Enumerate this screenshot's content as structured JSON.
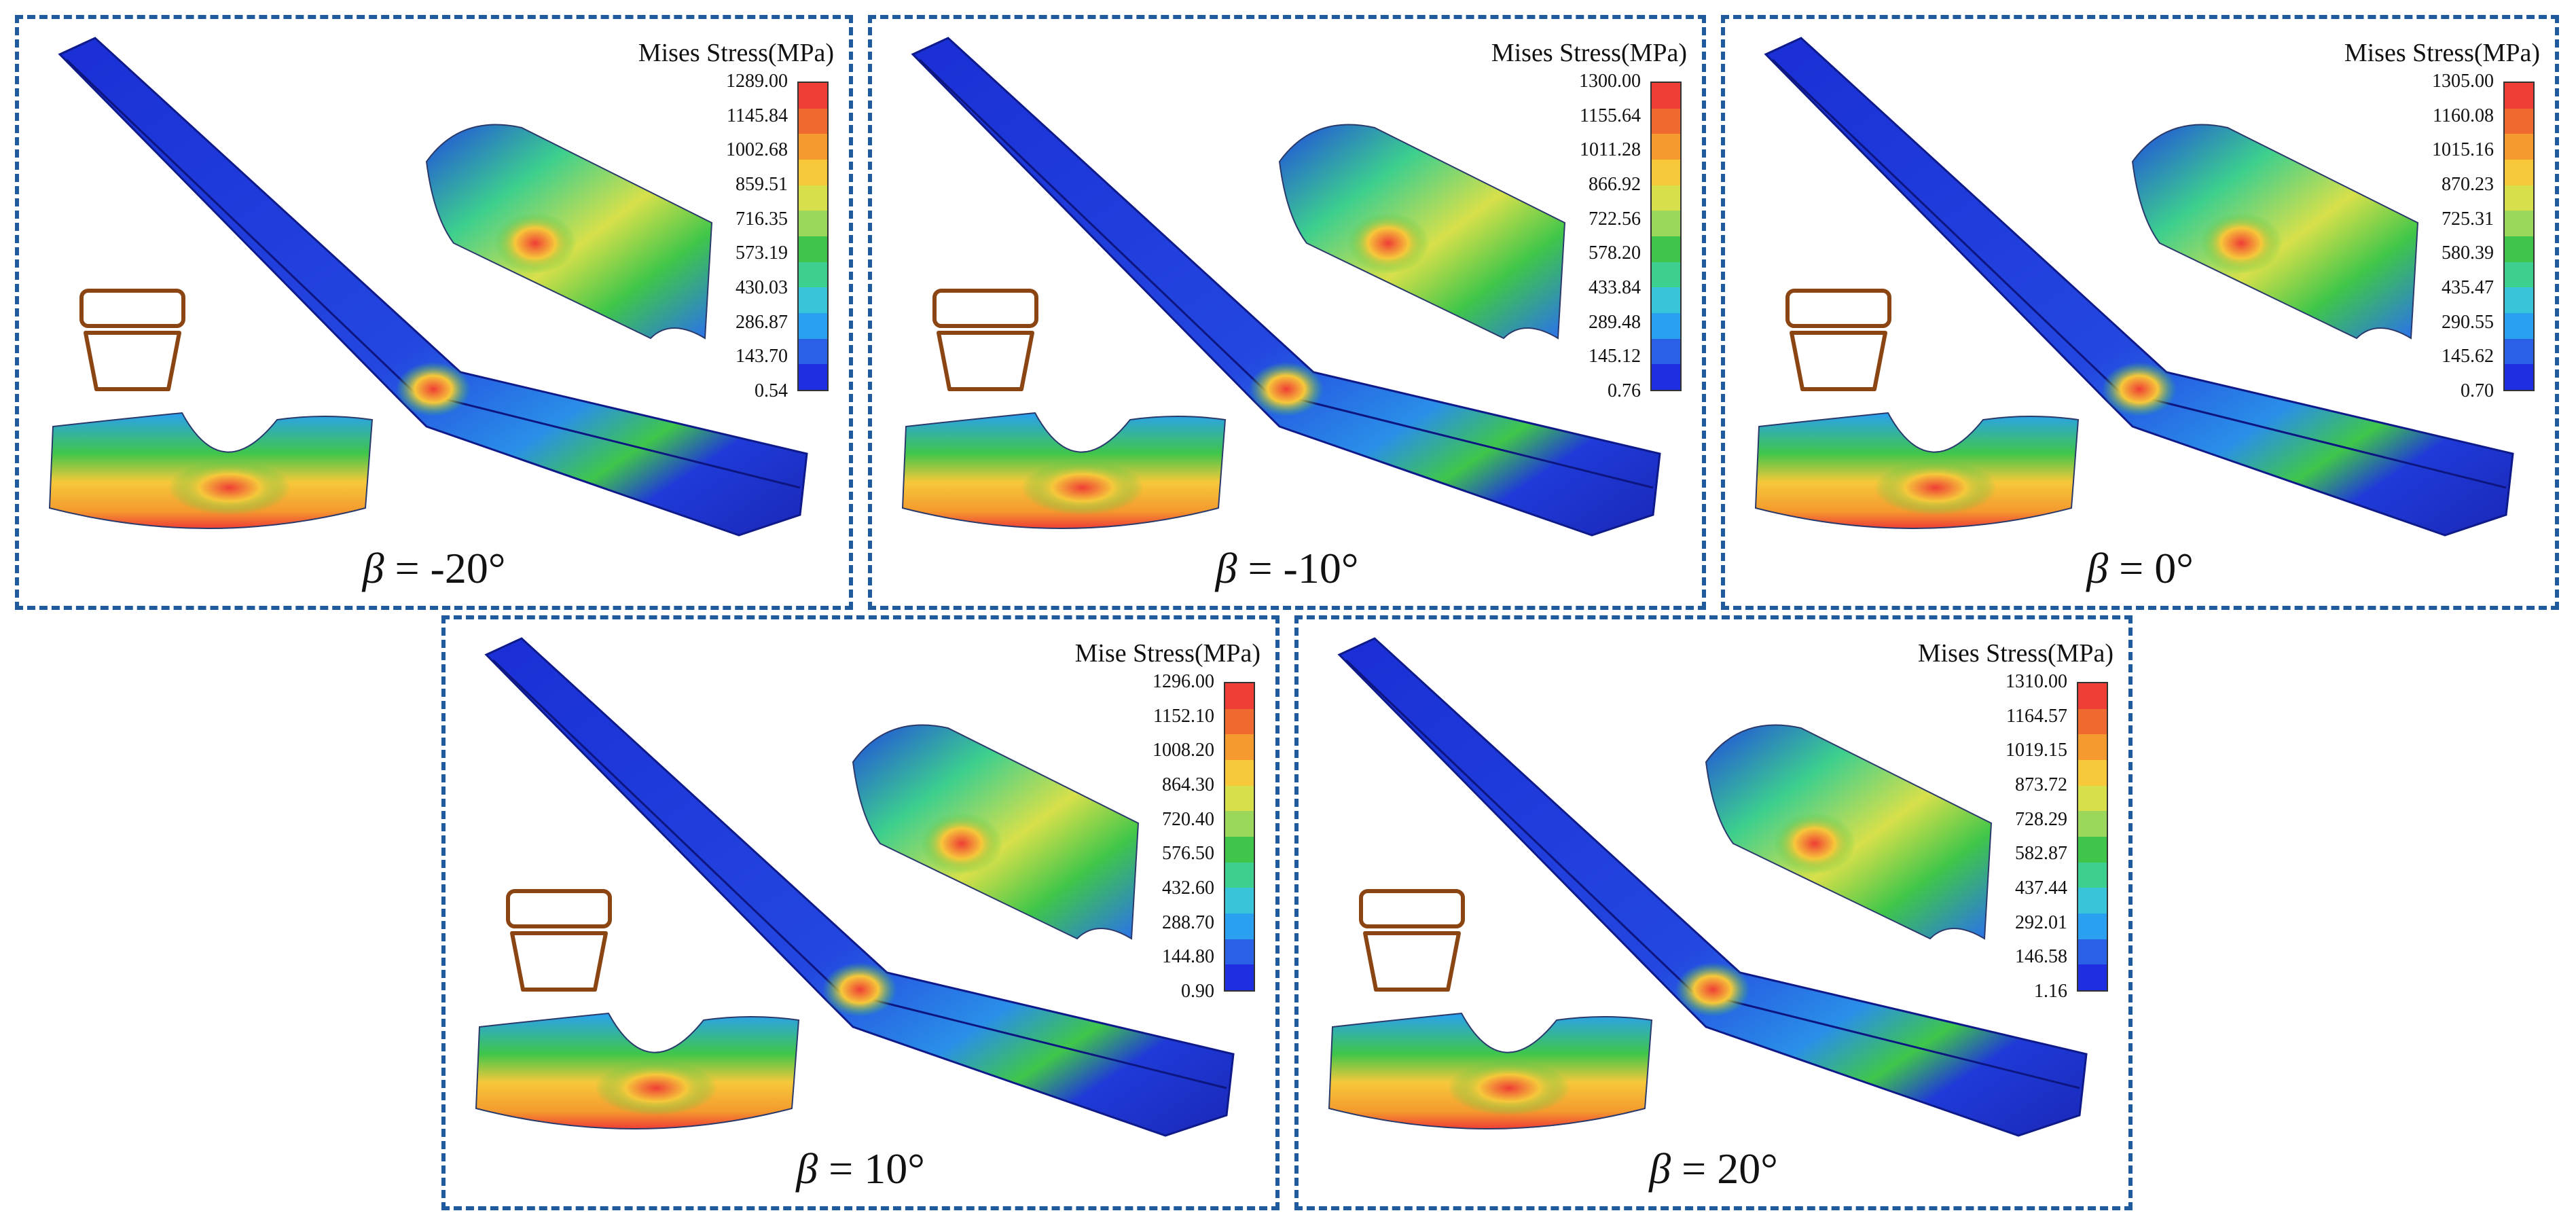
{
  "colors": {
    "border": "#1f5a9c",
    "cross_section": "#8b4513",
    "scale": [
      "#ef3e35",
      "#f06a30",
      "#f49a2e",
      "#f6c83a",
      "#d7e04a",
      "#9bd75a",
      "#3fc64a",
      "#3ccf8e",
      "#39c5d9",
      "#2aa0f0",
      "#2a5fe8",
      "#1f2ee0"
    ]
  },
  "panels": [
    {
      "legend_title": "Mises Stress(MPa)",
      "ticks": [
        "1289.00",
        "1145.84",
        "1002.68",
        "859.51",
        "716.35",
        "573.19",
        "430.03",
        "286.87",
        "143.70",
        "0.54"
      ],
      "beta_value": "= -20°",
      "beta_symbol": "β"
    },
    {
      "legend_title": "Mises Stress(MPa)",
      "ticks": [
        "1300.00",
        "1155.64",
        "1011.28",
        "866.92",
        "722.56",
        "578.20",
        "433.84",
        "289.48",
        "145.12",
        "0.76"
      ],
      "beta_value": "= -10°",
      "beta_symbol": "β"
    },
    {
      "legend_title": "Mises Stress(MPa)",
      "ticks": [
        "1305.00",
        "1160.08",
        "1015.16",
        "870.23",
        "725.31",
        "580.39",
        "435.47",
        "290.55",
        "145.62",
        "0.70"
      ],
      "beta_value": "= 0°",
      "beta_symbol": "β"
    },
    {
      "legend_title": "Mise Stress(MPa)",
      "ticks": [
        "1296.00",
        "1152.10",
        "1008.20",
        "864.30",
        "720.40",
        "576.50",
        "432.60",
        "288.70",
        "144.80",
        "0.90"
      ],
      "beta_value": "= 10°",
      "beta_symbol": "β"
    },
    {
      "legend_title": "Mises Stress(MPa)",
      "ticks": [
        "1310.00",
        "1164.57",
        "1019.15",
        "873.72",
        "728.29",
        "582.87",
        "437.44",
        "292.01",
        "146.58",
        "1.16"
      ],
      "beta_value": "= 20°",
      "beta_symbol": "β"
    }
  ]
}
